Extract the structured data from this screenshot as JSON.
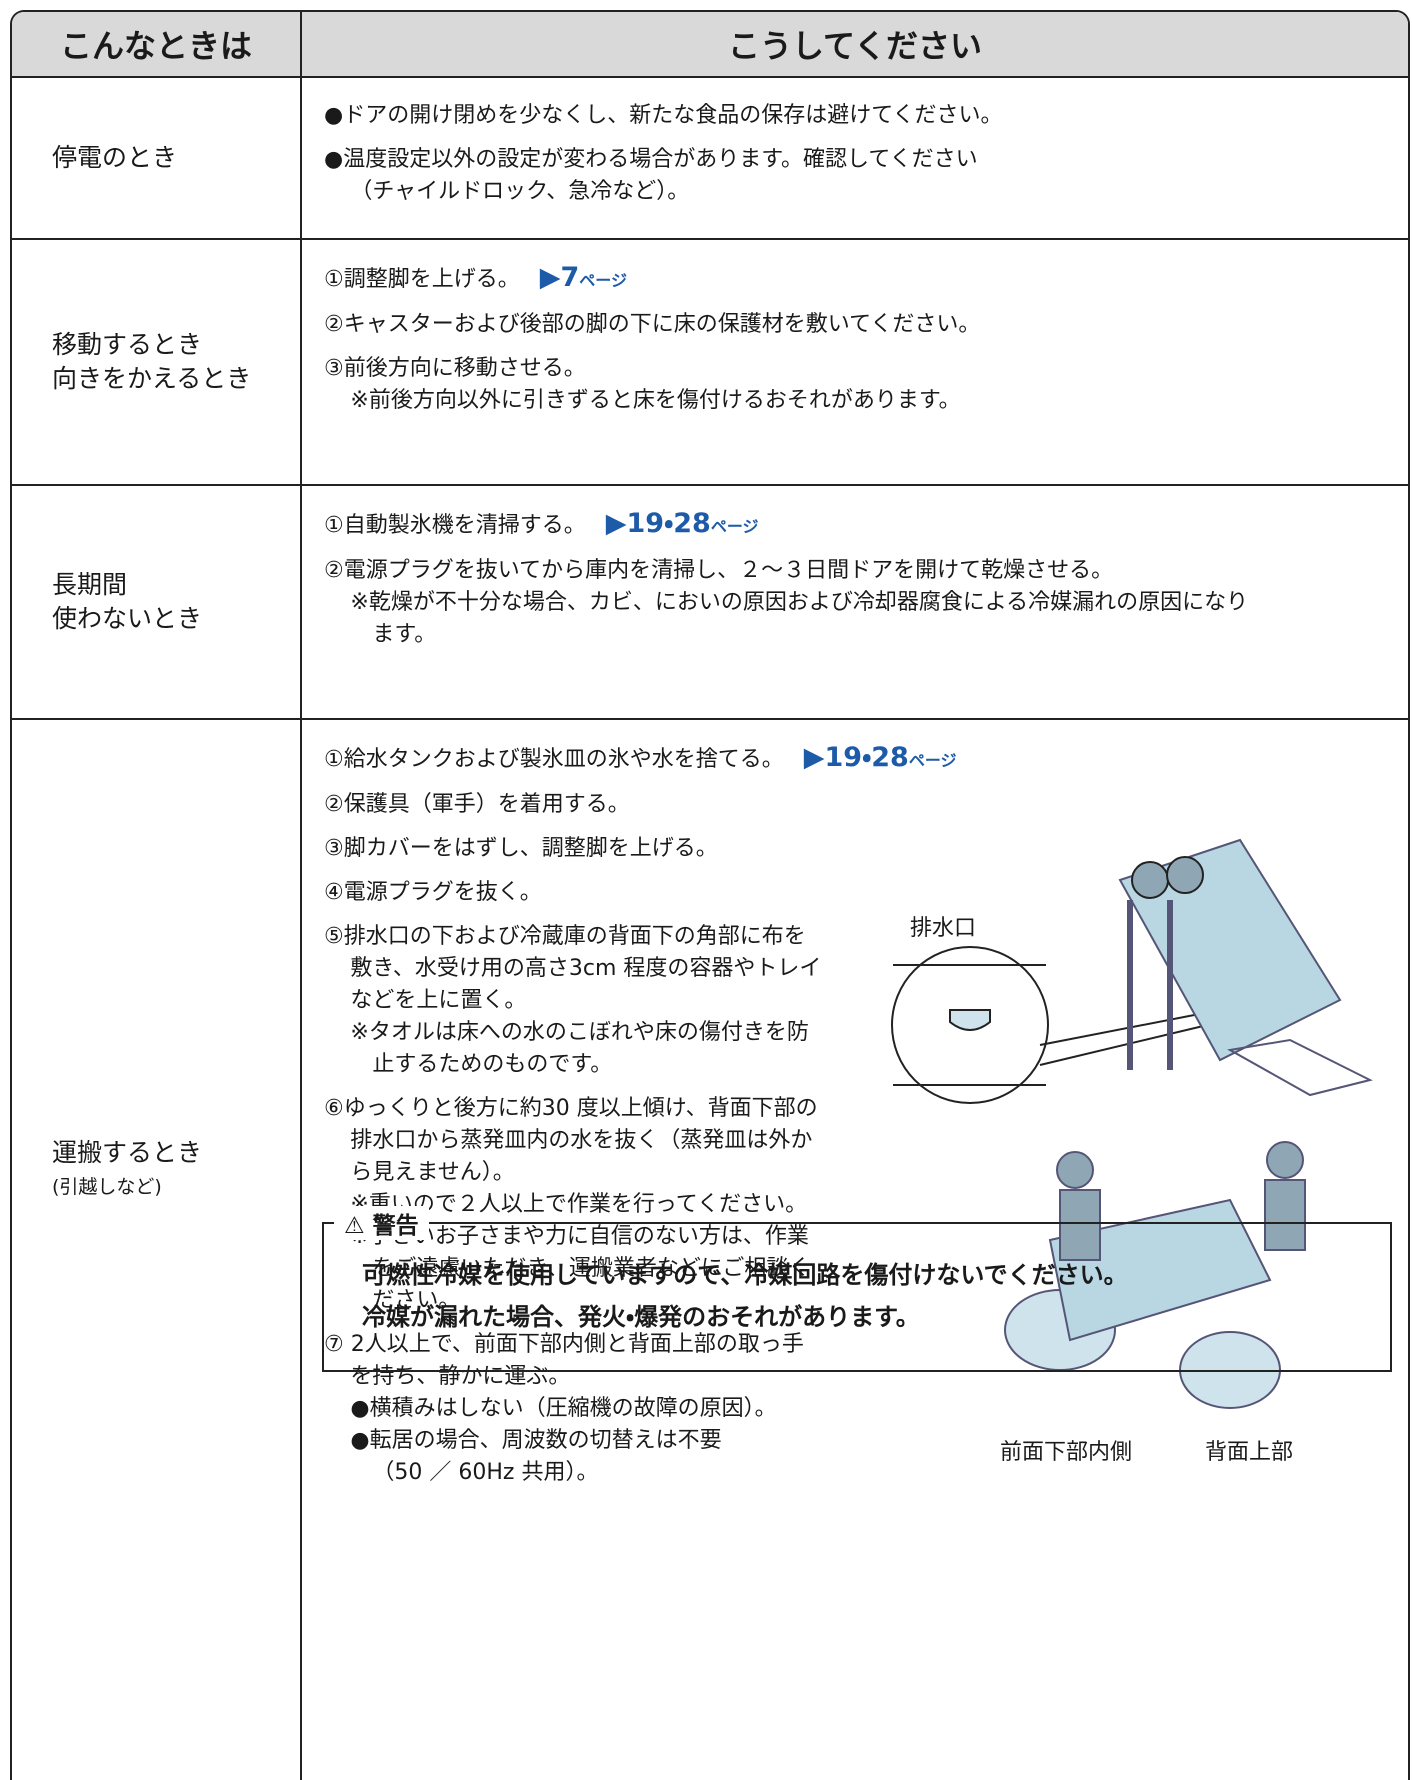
{
  "table": {
    "header": [
      "こんなときは",
      "こうしてください"
    ],
    "rows": [
      {
        "situation": [
          "停電のとき"
        ],
        "items": [
          {
            "lines": [
              "●ドアの開け閉めを少なくし、新たな食品の保存は避けてください。"
            ]
          },
          {
            "lines": [
              "●温度設定以外の設定が変わる場合があります。確認してください",
              "（チャイルドロック、急冷など）。"
            ]
          }
        ]
      },
      {
        "situation": [
          "移動するとき",
          "向きをかえるとき"
        ],
        "items": [
          {
            "lines": [
              "①調整脚を上げる。"
            ],
            "ref": "▶7",
            "ref_unit": "ページ"
          },
          {
            "lines": [
              "②キャスターおよび後部の脚の下に床の保護材を敷いてください。"
            ]
          },
          {
            "lines": [
              "③前後方向に移動させる。",
              "※前後方向以外に引きずると床を傷付けるおそれがあります。"
            ]
          }
        ]
      },
      {
        "situation": [
          "長期間",
          "使わないとき"
        ],
        "items": [
          {
            "lines": [
              "①自動製氷機を清掃する。"
            ],
            "ref": "▶19・28",
            "ref_unit": "ページ"
          },
          {
            "lines": [
              "②電源プラグを抜いてから庫内を清掃し、２～３日間ドアを開けて乾燥させる。",
              "※乾燥が不十分な場合、カビ、においの原因および冷却器腐食による冷媒漏れの原因になり",
              "ます。"
            ]
          }
        ]
      },
      {
        "situation": [
          "運搬するとき"
        ],
        "note": "(引越しなど)",
        "items": [
          {
            "lines": [
              "①給水タンクおよび製氷皿の氷や水を捨てる。"
            ],
            "ref": "▶19・28",
            "ref_unit": "ページ"
          },
          {
            "lines": [
              "②保護具（軍手）を着用する。"
            ]
          },
          {
            "lines": [
              "③脚カバーをはずし、調整脚を上げる。"
            ]
          },
          {
            "lines": [
              "④電源プラグを抜く。"
            ]
          },
          {
            "lines": [
              "⑤排水口の下および冷蔵庫の背面下の角部に布を",
              "敷き、水受け用の高さ3cm 程度の容器やトレイ",
              "などを上に置く。",
              "※タオルは床への水のこぼれや床の傷付きを防",
              "止するためのものです。"
            ]
          },
          {
            "lines": [
              "⑥ゆっくりと後方に約30 度以上傾け、背面下部の",
              "排水口から蒸発皿内の水を抜く（蒸発皿は外か",
              "ら見えません）。",
              "※重いので２人以上で作業を行ってください。",
              "※小さいお子さまや力に自信のない方は、作業",
              "をご遠慮いただき、運搬業者などにご相談く",
              "ださい。"
            ]
          },
          {
            "lines": [
              "⑦ 2人以上で、前面下部内側と背面上部の取っ手",
              "を持ち、静かに運ぶ。",
              "●横積みはしない（圧縮機の故障の原因）。",
              "●転居の場合、周波数の切替えは不要",
              "（50 ／ 60Hz 共用）。"
            ]
          }
        ]
      }
    ]
  },
  "figure": {
    "drain_label": "排水口",
    "front_label": "前面下部内側",
    "back_label": "背面上部"
  },
  "warning": {
    "title": "警告",
    "lines": [
      "可燃性冷媒を使用していますので、冷媒回路を傷付けないでください。",
      "冷媒が漏れた場合、発火・爆発のおそれがあります。"
    ]
  }
}
